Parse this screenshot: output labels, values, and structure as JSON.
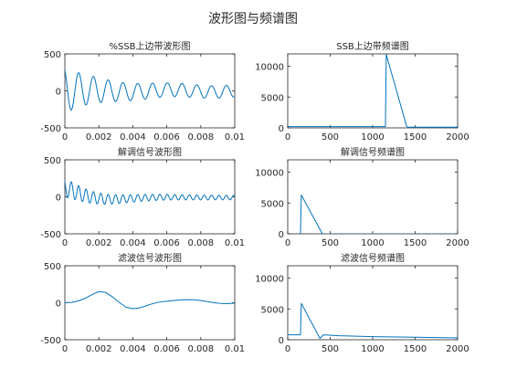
{
  "figure": {
    "title": "波形图与频谱图",
    "line_color": "#0072BD"
  },
  "chart_data": [
    {
      "type": "line",
      "title": "%SSB上边带波形图",
      "xlim": [
        0,
        0.01
      ],
      "ylim": [
        -500,
        500
      ],
      "xticks": [
        0,
        0.002,
        0.004,
        0.006,
        0.008,
        0.01
      ],
      "xtick_labels": [
        "0",
        "0.002",
        "0.004",
        "0.006",
        "0.008",
        "0.01"
      ],
      "yticks": [
        -500,
        0,
        500
      ],
      "ytick_labels": [
        "-500",
        "0",
        "500"
      ],
      "grid": false,
      "series": [
        {
          "generator": "ssb_wave"
        }
      ]
    },
    {
      "type": "line",
      "title": "SSB上边带频谱图",
      "xlim": [
        0,
        2000
      ],
      "ylim": [
        0,
        12000
      ],
      "xticks": [
        0,
        500,
        1000,
        1500,
        2000
      ],
      "xtick_labels": [
        "0",
        "500",
        "1000",
        "1500",
        "2000"
      ],
      "yticks": [
        0,
        5000,
        10000
      ],
      "ytick_labels": [
        "0",
        "5000",
        "10000"
      ],
      "grid": false,
      "series": [
        {
          "x": [
            0,
            1150,
            1150,
            1160,
            1400,
            1410,
            2000
          ],
          "y": [
            200,
            200,
            200,
            11900,
            250,
            120,
            120
          ]
        }
      ]
    },
    {
      "type": "line",
      "title": "解调信号波形图",
      "xlim": [
        0,
        0.01
      ],
      "ylim": [
        -500,
        500
      ],
      "xticks": [
        0,
        0.002,
        0.004,
        0.006,
        0.008,
        0.01
      ],
      "xtick_labels": [
        "0",
        "0.002",
        "0.004",
        "0.006",
        "0.008",
        "0.01"
      ],
      "yticks": [
        -500,
        0,
        500
      ],
      "ytick_labels": [
        "-500",
        "0",
        "500"
      ],
      "grid": false,
      "series": [
        {
          "generator": "demod_wave"
        }
      ]
    },
    {
      "type": "line",
      "title": "解调信号频谱图",
      "xlim": [
        0,
        2000
      ],
      "ylim": [
        0,
        12000
      ],
      "xticks": [
        0,
        500,
        1000,
        1500,
        2000
      ],
      "xtick_labels": [
        "0",
        "500",
        "1000",
        "1500",
        "2000"
      ],
      "yticks": [
        0,
        5000,
        10000
      ],
      "ytick_labels": [
        "0",
        "5000",
        "10000"
      ],
      "grid": false,
      "series": [
        {
          "x": [
            0,
            150,
            150,
            160,
            400,
            410,
            2000
          ],
          "y": [
            -100,
            -100,
            -100,
            6300,
            200,
            -30,
            -30
          ]
        }
      ]
    },
    {
      "type": "line",
      "title": "滤波信号波形图",
      "xlim": [
        0,
        0.01
      ],
      "ylim": [
        -500,
        500
      ],
      "xticks": [
        0,
        0.002,
        0.004,
        0.006,
        0.008,
        0.01
      ],
      "xtick_labels": [
        "0",
        "0.002",
        "0.004",
        "0.006",
        "0.008",
        "0.01"
      ],
      "yticks": [
        -500,
        0,
        500
      ],
      "ytick_labels": [
        "-500",
        "0",
        "500"
      ],
      "grid": false,
      "series": [
        {
          "x": [
            0,
            0.0004,
            0.0008,
            0.0012,
            0.0016,
            0.002,
            0.0024,
            0.0028,
            0.0032,
            0.0036,
            0.004,
            0.0044,
            0.0048,
            0.0052,
            0.0056,
            0.006,
            0.0064,
            0.0068,
            0.0072,
            0.0076,
            0.008,
            0.0084,
            0.0088,
            0.0092,
            0.0096,
            0.01
          ],
          "y": [
            0,
            5,
            25,
            60,
            110,
            150,
            140,
            80,
            5,
            -60,
            -80,
            -70,
            -40,
            -10,
            10,
            20,
            30,
            38,
            42,
            40,
            30,
            15,
            0,
            -10,
            -12,
            -5
          ]
        }
      ]
    },
    {
      "type": "line",
      "title": "滤波信号频谱图",
      "xlim": [
        0,
        2000
      ],
      "ylim": [
        0,
        12000
      ],
      "xticks": [
        0,
        500,
        1000,
        1500,
        2000
      ],
      "xtick_labels": [
        "0",
        "500",
        "1000",
        "1500",
        "2000"
      ],
      "yticks": [
        0,
        5000,
        10000
      ],
      "ytick_labels": [
        "0",
        "5000",
        "10000"
      ],
      "grid": false,
      "series": [
        {
          "x": [
            0,
            150,
            150,
            160,
            380,
            420,
            600,
            1000,
            1500,
            2000
          ],
          "y": [
            800,
            800,
            800,
            5900,
            200,
            800,
            650,
            500,
            400,
            300
          ]
        }
      ]
    }
  ]
}
